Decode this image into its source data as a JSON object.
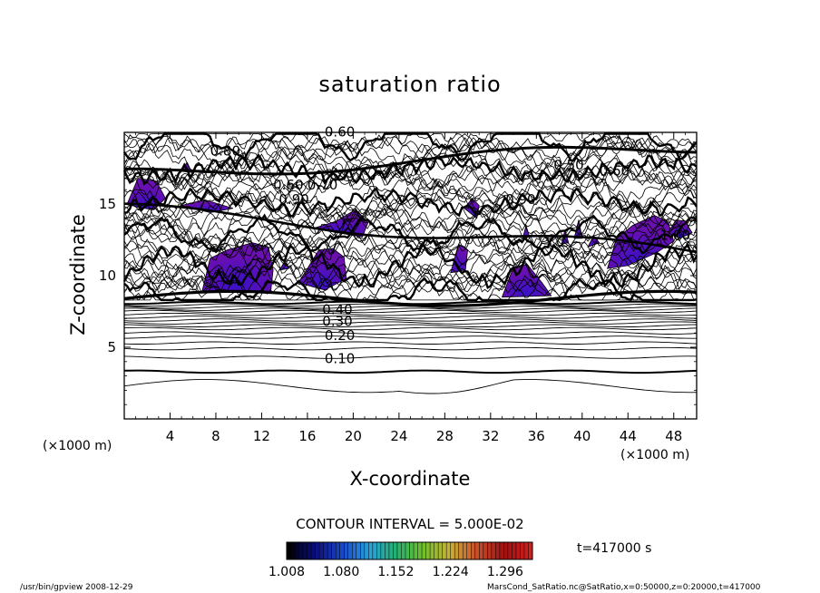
{
  "chart_data": {
    "type": "contour",
    "title": "saturation ratio",
    "xlabel": "X-coordinate",
    "ylabel": "Z-coordinate",
    "x_unit": "(×1000 m)",
    "y_unit": "(×1000 m)",
    "xlim": [
      0,
      50
    ],
    "ylim": [
      0,
      20
    ],
    "x_ticks": [
      "4",
      "8",
      "12",
      "16",
      "20",
      "24",
      "28",
      "32",
      "36",
      "40",
      "44",
      "48"
    ],
    "y_ticks": [
      "5",
      "10",
      "15"
    ],
    "contour_interval": "CONTOUR INTERVAL = 5.000E-02",
    "contour_labels": [
      "0.10",
      "0.20",
      "0.30",
      "0.40",
      "0.50",
      "0.60",
      "0.70",
      "0.80",
      "0.90",
      "1.00"
    ],
    "colorbar": {
      "min": 1.008,
      "max": 1.332,
      "tick_labels": [
        "1.008",
        "1.080",
        "1.152",
        "1.224",
        "1.296"
      ],
      "colors": [
        "#000000",
        "#0b0d80",
        "#1a48c8",
        "#2aa0dc",
        "#24b070",
        "#6fbf2a",
        "#c8b03a",
        "#c8502a",
        "#a01010",
        "#d02020"
      ]
    },
    "time_label": "t=417000 s",
    "supersaturated_fill": "#6a0fb0"
  },
  "footer": {
    "left": "/usr/bin/gpview   2008-12-29",
    "right": "MarsCond_SatRatio.nc@SatRatio,x=0:50000,z=0:20000,t=417000"
  }
}
